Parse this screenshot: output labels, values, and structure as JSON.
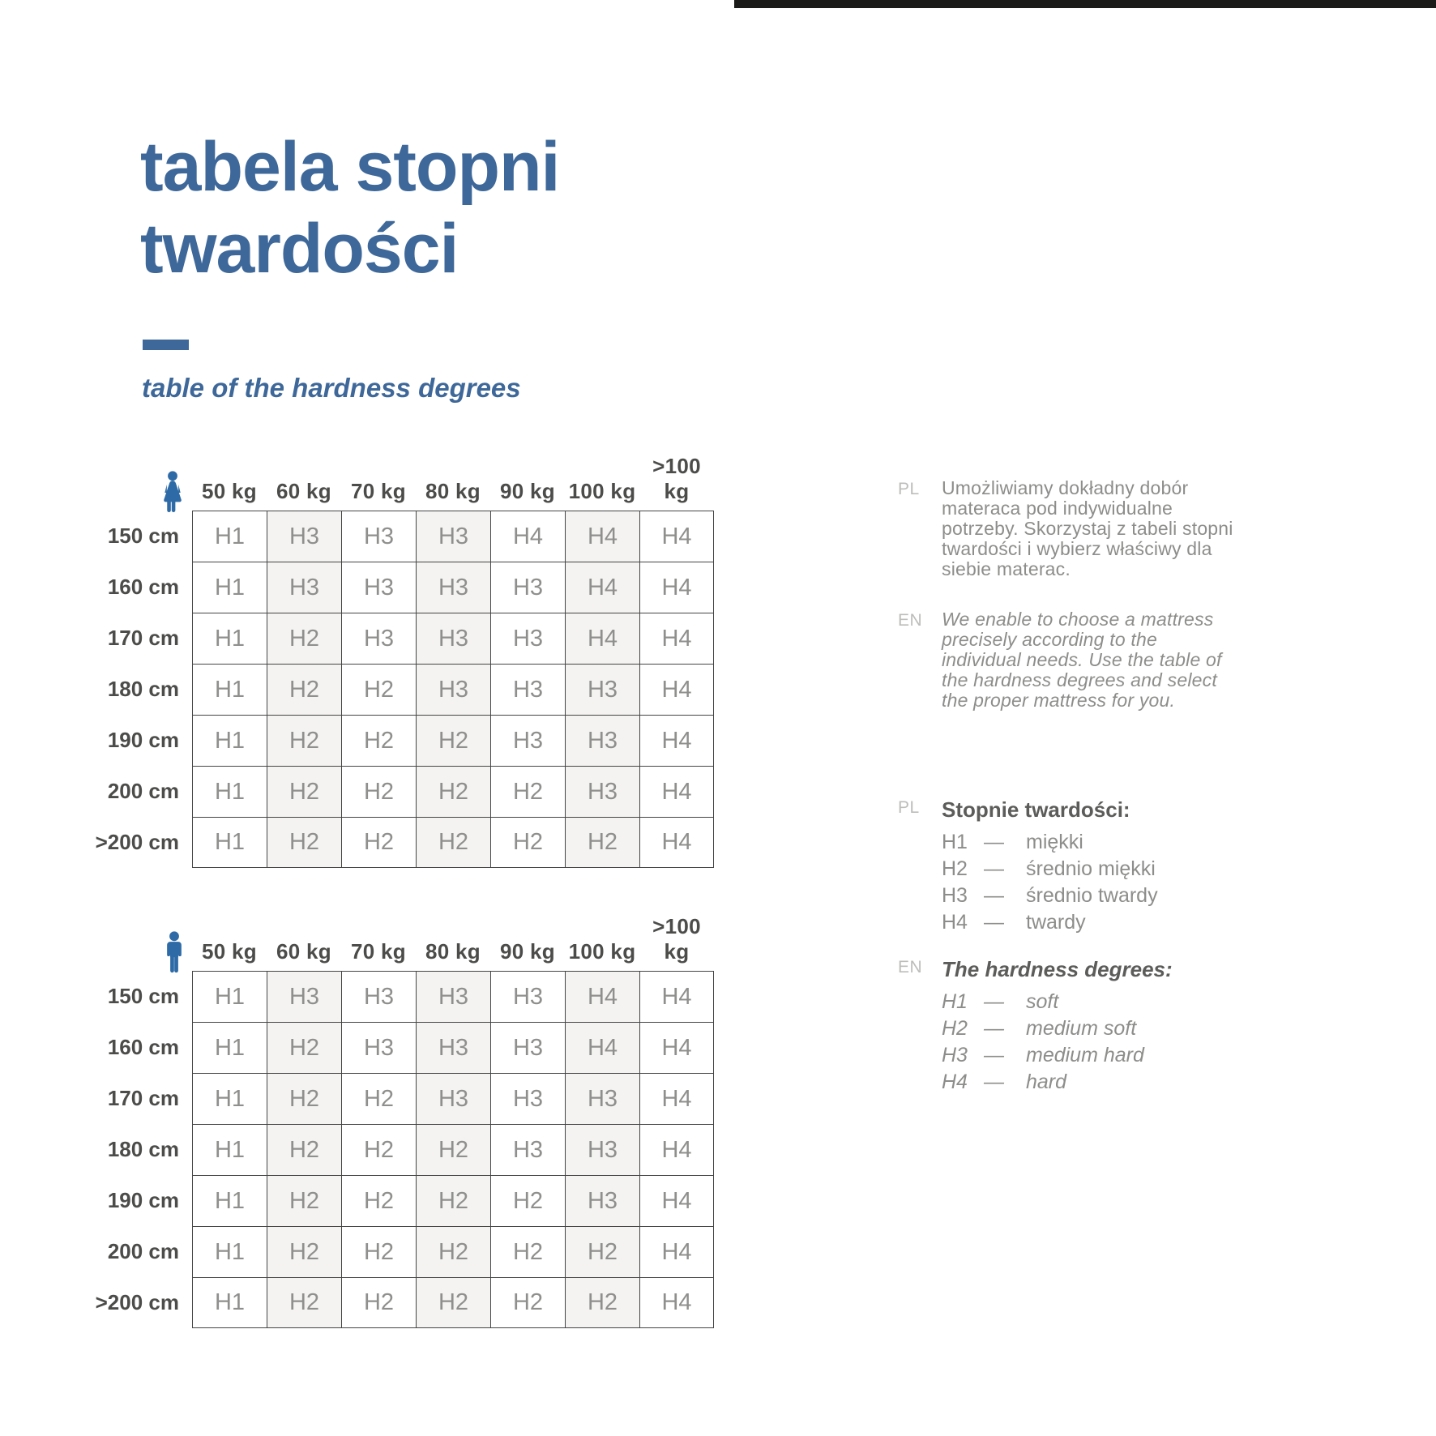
{
  "header": {
    "title_line1": "tabela stopni",
    "title_line2": "twardości",
    "subtitle": "table of the hardness degrees"
  },
  "hardness_table": {
    "weight_headers": [
      "50 kg",
      "60 kg",
      "70 kg",
      "80 kg",
      "90 kg",
      "100 kg",
      ">100 kg"
    ],
    "height_labels": [
      "150 cm",
      "160 cm",
      "170 cm",
      "180 cm",
      "190 cm",
      "200 cm",
      ">200 cm"
    ],
    "shaded_columns": [
      1,
      3,
      5
    ],
    "woman_rows": [
      [
        "H1",
        "H3",
        "H3",
        "H3",
        "H4",
        "H4",
        "H4"
      ],
      [
        "H1",
        "H3",
        "H3",
        "H3",
        "H3",
        "H4",
        "H4"
      ],
      [
        "H1",
        "H2",
        "H3",
        "H3",
        "H3",
        "H4",
        "H4"
      ],
      [
        "H1",
        "H2",
        "H2",
        "H3",
        "H3",
        "H3",
        "H4"
      ],
      [
        "H1",
        "H2",
        "H2",
        "H2",
        "H3",
        "H3",
        "H4"
      ],
      [
        "H1",
        "H2",
        "H2",
        "H2",
        "H2",
        "H3",
        "H4"
      ],
      [
        "H1",
        "H2",
        "H2",
        "H2",
        "H2",
        "H2",
        "H4"
      ]
    ],
    "man_rows": [
      [
        "H1",
        "H3",
        "H3",
        "H3",
        "H3",
        "H4",
        "H4"
      ],
      [
        "H1",
        "H2",
        "H3",
        "H3",
        "H3",
        "H4",
        "H4"
      ],
      [
        "H1",
        "H2",
        "H2",
        "H3",
        "H3",
        "H3",
        "H4"
      ],
      [
        "H1",
        "H2",
        "H2",
        "H2",
        "H3",
        "H3",
        "H4"
      ],
      [
        "H1",
        "H2",
        "H2",
        "H2",
        "H2",
        "H3",
        "H4"
      ],
      [
        "H1",
        "H2",
        "H2",
        "H2",
        "H2",
        "H2",
        "H4"
      ],
      [
        "H1",
        "H2",
        "H2",
        "H2",
        "H2",
        "H2",
        "H4"
      ]
    ]
  },
  "info": {
    "pl": {
      "tag": "PL",
      "text": "Umożliwiamy dokładny dobór\nmateraca pod indywidualne\npotrzeby. Skorzystaj z tabeli stopni\ntwardości i wybierz właściwy dla\nsiebie materac."
    },
    "en": {
      "tag": "EN",
      "text": "We enable to choose a mattress\nprecisely according to the\nindividual needs. Use the table of\nthe hardness degrees and select\nthe proper mattress for you."
    }
  },
  "legend_pl": {
    "tag": "PL",
    "title": "Stopnie twardości:",
    "separator": "—",
    "items": [
      {
        "code": "H1",
        "label": "miękki"
      },
      {
        "code": "H2",
        "label": "średnio miękki"
      },
      {
        "code": "H3",
        "label": "średnio twardy"
      },
      {
        "code": "H4",
        "label": "twardy"
      }
    ]
  },
  "legend_en": {
    "tag": "EN",
    "title": "The hardness degrees:",
    "separator": "—",
    "items": [
      {
        "code": "H1",
        "label": "soft"
      },
      {
        "code": "H2",
        "label": "medium soft"
      },
      {
        "code": "H3",
        "label": "medium hard"
      },
      {
        "code": "H4",
        "label": "hard"
      }
    ]
  },
  "colors": {
    "accent_blue": "#3e6899",
    "icon_blue": "#2e6ba6",
    "grid_line": "#454545",
    "cell_text": "#8f8f8d",
    "label_text": "#4c4c4a",
    "body_text": "#8d8d8b",
    "legend_title_text": "#5c5c5a",
    "tag_text": "#bdbdbb",
    "shaded_column": "#f4f3f1",
    "top_bar": "#1b1b19",
    "background": "#ffffff"
  }
}
